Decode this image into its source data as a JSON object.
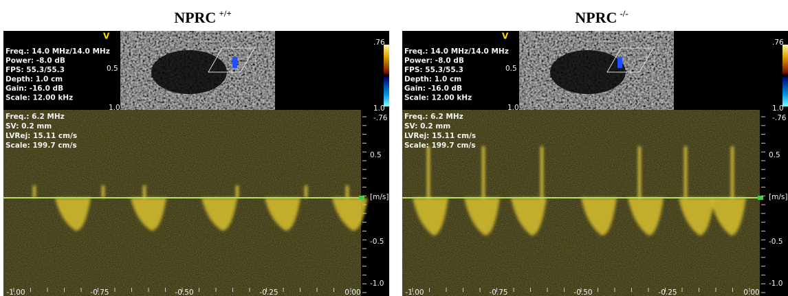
{
  "panels": [
    {
      "title": "NPRC",
      "superscript": "+/+",
      "settings": [
        "Freq.: 14.0 MHz/14.0 MHz",
        "Power: -8.0 dB",
        "FPS: 55.3/55.3",
        "Depth: 1.0 cm",
        "Gain: -16.0 dB",
        "Scale: 12.00 kHz"
      ],
      "doppler_settings": [
        "Freq.: 6.2 MHz",
        "SV: 0.2 mm",
        "LVRej: 15.11 cm/s",
        "Scale: 199.7 cm/s"
      ],
      "marker": "V",
      "depth_labels": [
        "0.5",
        "1.0"
      ],
      "color_scale": [
        ".76",
        "1.0",
        "-.76"
      ],
      "velocity_labels": [
        "0.5",
        "[m/s]",
        "-0.5",
        "-1.0"
      ],
      "time_labels": [
        "-1.00",
        "-0.75",
        "-0.50",
        "-0.25",
        "0.00"
      ]
    },
    {
      "title": "NPRC",
      "superscript": "-/-",
      "settings": [
        "Freq.: 14.0 MHz/14.0 MHz",
        "Power: -8.0 dB",
        "FPS: 55.3/55.3",
        "Depth: 1.0 cm",
        "Gain: -16.0 dB",
        "Scale: 12.00 kHz"
      ],
      "doppler_settings": [
        "Freq.: 6.2 MHz",
        "SV: 0.2 mm",
        "LVRej: 15.11 cm/s",
        "Scale: 199.7 cm/s"
      ],
      "marker": "V",
      "depth_labels": [
        "0.5",
        "1.0"
      ],
      "color_scale": [
        ".76",
        "1.0",
        "-.76"
      ],
      "velocity_labels": [
        "0.5",
        "[m/s]",
        "-0.5",
        "-1.0"
      ],
      "time_labels": [
        "-1.00",
        "-0.75",
        "-0.50",
        "-0.25",
        "0.00"
      ]
    }
  ]
}
